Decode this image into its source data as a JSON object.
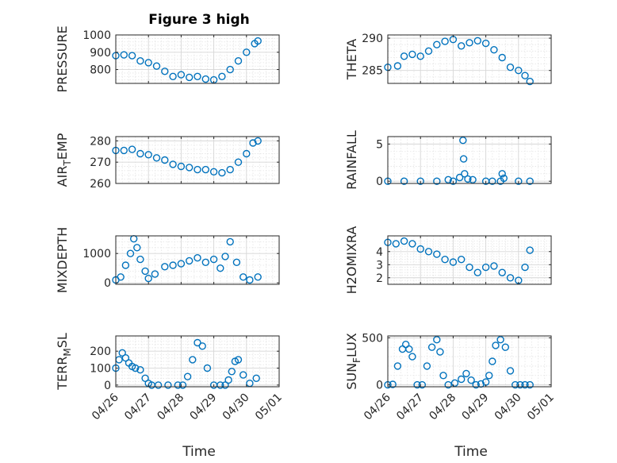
{
  "figure": {
    "title": "Figure 3 high",
    "xlabel": "Time"
  },
  "chart_data": [
    {
      "type": "scatter",
      "ylabel": "PRESSURE",
      "ylim": [
        720,
        1000
      ],
      "yticks": [
        800,
        900,
        1000
      ],
      "xlim": [
        0,
        5
      ],
      "xticks": [
        "04/26",
        "04/27",
        "04/28",
        "04/29",
        "04/30",
        "05/01"
      ],
      "grid": true,
      "x": [
        0,
        0.25,
        0.5,
        0.75,
        1,
        1.25,
        1.5,
        1.75,
        2,
        2.25,
        2.5,
        2.75,
        3,
        3.25,
        3.5,
        3.75,
        4,
        4.25,
        4.35
      ],
      "y": [
        880,
        885,
        880,
        850,
        840,
        820,
        790,
        760,
        770,
        755,
        760,
        745,
        740,
        760,
        800,
        850,
        900,
        950,
        965
      ]
    },
    {
      "type": "scatter",
      "ylabel": "THETA",
      "ylim": [
        283,
        290.5
      ],
      "yticks": [
        285,
        290
      ],
      "xlim": [
        0,
        5
      ],
      "xticks": [
        "04/26",
        "04/27",
        "04/28",
        "04/29",
        "04/30",
        "05/01"
      ],
      "grid": true,
      "x": [
        0,
        0.3,
        0.5,
        0.75,
        1,
        1.25,
        1.5,
        1.75,
        2,
        2.25,
        2.5,
        2.75,
        3,
        3.25,
        3.5,
        3.75,
        4,
        4.2,
        4.35
      ],
      "y": [
        285.5,
        285.7,
        287.2,
        287.5,
        287.2,
        288,
        289,
        289.5,
        289.8,
        288.8,
        289.3,
        289.6,
        289.2,
        288.2,
        287,
        285.5,
        285,
        284.2,
        283.3
      ]
    },
    {
      "type": "scatter",
      "ylabel": "AIR_TEMP",
      "ylim": [
        260,
        282
      ],
      "yticks": [
        260,
        270,
        280
      ],
      "xlim": [
        0,
        5
      ],
      "xticks": [
        "04/26",
        "04/27",
        "04/28",
        "04/29",
        "04/30",
        "05/01"
      ],
      "grid": true,
      "x": [
        0,
        0.25,
        0.5,
        0.75,
        1,
        1.25,
        1.5,
        1.75,
        2,
        2.25,
        2.5,
        2.75,
        3,
        3.25,
        3.5,
        3.75,
        4,
        4.2,
        4.35
      ],
      "y": [
        275.5,
        275.5,
        276,
        274,
        273.5,
        272,
        271,
        269,
        268,
        267.5,
        266.5,
        266.5,
        265.5,
        265,
        266.5,
        270,
        274,
        279,
        280
      ]
    },
    {
      "type": "scatter",
      "ylabel": "RAINFALL",
      "ylim": [
        -0.3,
        6
      ],
      "yticks": [
        0,
        5
      ],
      "xlim": [
        0,
        5
      ],
      "xticks": [
        "04/26",
        "04/27",
        "04/28",
        "04/29",
        "04/30",
        "05/01"
      ],
      "grid": true,
      "x": [
        0,
        0.5,
        1,
        1.5,
        1.85,
        2,
        2.2,
        2.3,
        2.32,
        2.35,
        2.45,
        2.6,
        3,
        3.2,
        3.45,
        3.5,
        3.55,
        4,
        4.35
      ],
      "y": [
        0,
        0,
        0,
        0,
        0.2,
        0,
        0.5,
        5.5,
        3,
        1,
        0.3,
        0.2,
        0,
        0,
        0,
        1,
        0.4,
        0,
        0
      ]
    },
    {
      "type": "scatter",
      "ylabel": "MIXDEPTH",
      "ylim": [
        -50,
        1600
      ],
      "yticks": [
        0,
        1000
      ],
      "xlim": [
        0,
        5
      ],
      "xticks": [
        "04/26",
        "04/27",
        "04/28",
        "04/29",
        "04/30",
        "05/01"
      ],
      "grid": true,
      "x": [
        0,
        0.15,
        0.3,
        0.45,
        0.55,
        0.65,
        0.75,
        0.9,
        1,
        1.2,
        1.5,
        1.75,
        2,
        2.25,
        2.5,
        2.75,
        3,
        3.2,
        3.35,
        3.5,
        3.7,
        3.9,
        4.1,
        4.35
      ],
      "y": [
        100,
        200,
        600,
        1000,
        1500,
        1200,
        800,
        400,
        150,
        300,
        550,
        600,
        650,
        750,
        850,
        700,
        800,
        500,
        900,
        1400,
        700,
        200,
        100,
        200
      ]
    },
    {
      "type": "scatter",
      "ylabel": "H2OMIXRA",
      "ylim": [
        1.5,
        5.2
      ],
      "yticks": [
        2,
        3,
        4
      ],
      "xlim": [
        0,
        5
      ],
      "xticks": [
        "04/26",
        "04/27",
        "04/28",
        "04/29",
        "04/30",
        "05/01"
      ],
      "grid": true,
      "x": [
        0,
        0.25,
        0.5,
        0.75,
        1,
        1.25,
        1.5,
        1.75,
        2,
        2.25,
        2.5,
        2.75,
        3,
        3.25,
        3.5,
        3.75,
        4,
        4.2,
        4.35
      ],
      "y": [
        4.7,
        4.6,
        4.8,
        4.6,
        4.2,
        4,
        3.8,
        3.4,
        3.2,
        3.4,
        2.8,
        2.4,
        2.8,
        2.9,
        2.4,
        2,
        1.8,
        2.8,
        4.1
      ]
    },
    {
      "type": "scatter",
      "ylabel": "TERR_MSL",
      "ylim": [
        -10,
        290
      ],
      "yticks": [
        0,
        100,
        200
      ],
      "xlim": [
        0,
        5
      ],
      "xticks": [
        "04/26",
        "04/27",
        "04/28",
        "04/29",
        "04/30",
        "05/01"
      ],
      "grid": true,
      "x": [
        0,
        0.1,
        0.2,
        0.3,
        0.4,
        0.5,
        0.6,
        0.75,
        0.9,
        1,
        1.1,
        1.3,
        1.6,
        1.9,
        2.05,
        2.2,
        2.35,
        2.5,
        2.65,
        2.8,
        3,
        3.2,
        3.35,
        3.45,
        3.55,
        3.65,
        3.75,
        3.9,
        4.1,
        4.3
      ],
      "y": [
        100,
        150,
        190,
        160,
        130,
        110,
        100,
        90,
        40,
        10,
        0,
        0,
        0,
        0,
        0,
        50,
        150,
        250,
        230,
        100,
        0,
        0,
        0,
        30,
        80,
        140,
        150,
        60,
        10,
        40
      ]
    },
    {
      "type": "scatter",
      "ylabel": "SUN_FLUX",
      "ylim": [
        -20,
        520
      ],
      "yticks": [
        0,
        500
      ],
      "xlim": [
        0,
        5
      ],
      "xticks": [
        "04/26",
        "04/27",
        "04/28",
        "04/29",
        "04/30",
        "05/01"
      ],
      "grid": true,
      "x": [
        0,
        0.15,
        0.3,
        0.45,
        0.55,
        0.65,
        0.75,
        0.9,
        1.05,
        1.2,
        1.35,
        1.5,
        1.6,
        1.7,
        1.85,
        2.05,
        2.25,
        2.4,
        2.55,
        2.7,
        2.85,
        3,
        3.1,
        3.2,
        3.3,
        3.45,
        3.6,
        3.75,
        3.9,
        4.05,
        4.2,
        4.35
      ],
      "y": [
        0,
        5,
        200,
        380,
        430,
        380,
        300,
        0,
        0,
        200,
        400,
        480,
        350,
        100,
        0,
        20,
        60,
        120,
        50,
        0,
        10,
        30,
        100,
        250,
        420,
        480,
        400,
        150,
        0,
        0,
        0,
        0
      ]
    }
  ]
}
